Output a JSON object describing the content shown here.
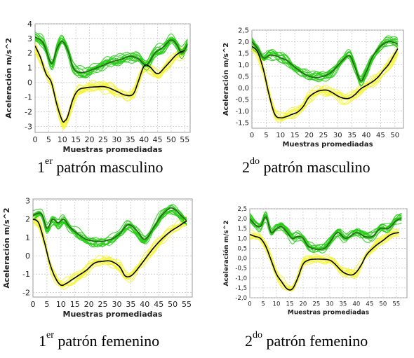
{
  "captions": [
    {
      "pre": "1",
      "sup": "er",
      "post": " patrón masculino"
    },
    {
      "pre": "2",
      "sup": "do",
      "post": " patrón masculino"
    },
    {
      "pre": "1",
      "sup": "er",
      "post": " patrón femenino"
    },
    {
      "pre": "2",
      "sup": "do",
      "post": " patrón femenino"
    }
  ],
  "colors": {
    "green": "#22cc11",
    "yellow": "#f4f43a",
    "mean": "#000000"
  },
  "chart_data": [
    {
      "type": "line",
      "xlabel": "Muestras promediadas",
      "ylabel": "Aceleración m/s^2",
      "xlim": [
        0,
        57
      ],
      "ylim": [
        -3.4,
        4
      ],
      "xticks": [
        "0",
        "5",
        "10",
        "15",
        "20",
        "25",
        "30",
        "35",
        "40",
        "45",
        "50",
        "55"
      ],
      "yticks": [
        "-3",
        "-2",
        "-1",
        "0",
        "1",
        "2",
        "3",
        "4"
      ],
      "series": [
        {
          "color": "green",
          "x": [
            0,
            3,
            6,
            8,
            10,
            12,
            14,
            16,
            18,
            20,
            24,
            28,
            32,
            35,
            38,
            41,
            44,
            47,
            50,
            52,
            54,
            56
          ],
          "y": [
            3.1,
            2.7,
            1.3,
            2.3,
            2.8,
            2.2,
            1.0,
            0.7,
            0.7,
            0.8,
            1.1,
            1.4,
            1.6,
            1.8,
            1.6,
            1.2,
            2.0,
            2.4,
            2.9,
            2.6,
            2.0,
            2.6
          ]
        },
        {
          "color": "yellow",
          "x": [
            0,
            2,
            4,
            6,
            8,
            10,
            11,
            12,
            14,
            16,
            19,
            22,
            26,
            30,
            33,
            36,
            38,
            40,
            42,
            45,
            48,
            52,
            55
          ],
          "y": [
            2.4,
            1.6,
            0.6,
            0.0,
            -1.5,
            -2.8,
            -2.8,
            -2.4,
            -1.2,
            -0.6,
            -0.4,
            -0.3,
            -0.3,
            -0.6,
            -0.9,
            -0.8,
            0.1,
            1.0,
            1.0,
            0.5,
            1.0,
            1.8,
            2.1
          ]
        },
        {
          "color": "mean",
          "x": [
            0,
            2,
            4,
            6,
            8,
            10,
            11,
            12,
            14,
            16,
            19,
            22,
            26,
            30,
            33,
            36,
            38,
            40,
            42,
            45,
            48,
            52,
            55
          ],
          "y": [
            2.5,
            1.7,
            0.6,
            0.0,
            -1.5,
            -2.6,
            -2.6,
            -2.3,
            -1.1,
            -0.5,
            -0.35,
            -0.3,
            -0.3,
            -0.6,
            -0.85,
            -0.8,
            0.1,
            1.1,
            1.1,
            0.6,
            1.1,
            1.9,
            2.2
          ]
        }
      ]
    },
    {
      "type": "line",
      "xlabel": "Muestras promediadas",
      "ylabel": "Aceleración m/s^2",
      "xlim": [
        0,
        53
      ],
      "ylim": [
        -1.75,
        2.5
      ],
      "xticks": [
        "0",
        "5",
        "10",
        "15",
        "20",
        "25",
        "30",
        "35",
        "40",
        "45",
        "50"
      ],
      "yticks": [
        "-1,5",
        "-1,0",
        "-0,5",
        "0,0",
        "0,5",
        "1,0",
        "1,5",
        "2,0",
        "2,5"
      ],
      "series": [
        {
          "color": "green",
          "x": [
            0,
            2,
            4,
            6,
            8,
            10,
            12,
            14,
            16,
            19,
            22,
            25,
            28,
            31,
            34,
            36,
            38,
            40,
            42,
            45,
            48,
            51
          ],
          "y": [
            2.0,
            1.7,
            1.3,
            1.4,
            1.4,
            1.3,
            1.2,
            1.0,
            0.8,
            0.55,
            0.45,
            0.5,
            0.7,
            1.1,
            1.4,
            0.9,
            0.3,
            0.7,
            1.3,
            1.8,
            2.0,
            1.9
          ]
        },
        {
          "color": "yellow",
          "x": [
            0,
            2,
            4,
            6,
            8,
            10,
            12,
            14,
            16,
            18,
            20,
            23,
            26,
            28,
            30,
            32,
            34,
            36,
            38,
            40,
            42,
            44,
            46,
            48,
            51
          ],
          "y": [
            1.7,
            1.5,
            0.8,
            -0.3,
            -1.1,
            -1.25,
            -1.2,
            -1.1,
            -1.0,
            -0.8,
            -0.4,
            -0.15,
            -0.1,
            -0.2,
            -0.35,
            -0.45,
            -0.45,
            -0.3,
            -0.05,
            0.1,
            0.25,
            0.45,
            0.7,
            1.0,
            1.6
          ]
        },
        {
          "color": "mean",
          "x": [
            0,
            2,
            4,
            6,
            8,
            10,
            12,
            14,
            16,
            18,
            20,
            23,
            26,
            28,
            30,
            32,
            34,
            36,
            38,
            40,
            42,
            44,
            46,
            48,
            51
          ],
          "y": [
            1.8,
            1.55,
            0.8,
            -0.3,
            -1.15,
            -1.3,
            -1.25,
            -1.15,
            -1.05,
            -0.8,
            -0.4,
            -0.15,
            -0.1,
            -0.2,
            -0.35,
            -0.45,
            -0.45,
            -0.3,
            -0.05,
            0.1,
            0.25,
            0.45,
            0.75,
            1.05,
            1.7
          ]
        }
      ]
    },
    {
      "type": "line",
      "xlabel": "Muestras promediadas",
      "ylabel": "Aceleración m/s^2",
      "xlim": [
        0,
        57
      ],
      "ylim": [
        -2.25,
        3.1
      ],
      "xticks": [
        "0",
        "5",
        "10",
        "15",
        "20",
        "25",
        "30",
        "35",
        "40",
        "45",
        "50",
        "55"
      ],
      "yticks": [
        "-2",
        "-1",
        "0",
        "1",
        "2",
        "3"
      ],
      "series": [
        {
          "color": "green",
          "x": [
            0,
            3,
            5,
            7,
            9,
            11,
            13,
            16,
            19,
            22,
            25,
            28,
            31,
            34,
            37,
            40,
            43,
            46,
            49,
            51,
            53,
            55
          ],
          "y": [
            2.2,
            2.3,
            1.5,
            2.0,
            1.8,
            2.0,
            1.6,
            1.2,
            0.9,
            0.8,
            0.8,
            0.9,
            1.2,
            1.7,
            1.4,
            0.9,
            1.5,
            2.2,
            2.6,
            2.5,
            2.2,
            1.9
          ]
        },
        {
          "color": "yellow",
          "x": [
            0,
            2,
            4,
            6,
            8,
            10,
            12,
            14,
            16,
            19,
            22,
            25,
            28,
            31,
            33,
            35,
            37,
            40,
            43,
            46,
            49,
            52,
            55
          ],
          "y": [
            2.0,
            1.8,
            0.8,
            -0.4,
            -1.2,
            -1.6,
            -1.5,
            -1.3,
            -1.1,
            -0.8,
            -0.4,
            -0.3,
            -0.3,
            -0.6,
            -1.1,
            -1.1,
            -0.8,
            -0.2,
            0.4,
            0.9,
            1.3,
            1.6,
            1.9
          ]
        },
        {
          "color": "mean",
          "x": [
            0,
            2,
            4,
            6,
            8,
            10,
            12,
            14,
            16,
            19,
            22,
            25,
            28,
            31,
            33,
            35,
            37,
            40,
            43,
            46,
            49,
            52,
            55
          ],
          "y": [
            2.0,
            1.8,
            0.8,
            -0.4,
            -1.2,
            -1.6,
            -1.5,
            -1.3,
            -1.1,
            -0.8,
            -0.4,
            -0.3,
            -0.3,
            -0.6,
            -1.1,
            -1.1,
            -0.8,
            -0.2,
            0.4,
            0.9,
            1.3,
            1.6,
            1.9
          ]
        }
      ]
    },
    {
      "type": "line",
      "xlabel": "Muestras promediadas",
      "ylabel": "Aceleración m/s^2",
      "xlim": [
        0,
        59
      ],
      "ylim": [
        -2.0,
        2.5
      ],
      "xticks": [
        "0",
        "5",
        "10",
        "15",
        "20",
        "25",
        "30",
        "35",
        "40",
        "45",
        "50",
        "55"
      ],
      "yticks": [
        "-2,0",
        "-1,5",
        "-1,0",
        "-0,5",
        "0,0",
        "0,5",
        "1,0",
        "1,5",
        "2,0",
        "2,5"
      ],
      "series": [
        {
          "color": "green",
          "x": [
            0,
            2,
            4,
            6,
            8,
            10,
            12,
            14,
            16,
            18,
            20,
            22,
            25,
            28,
            30,
            33,
            36,
            40,
            43,
            46,
            49,
            52,
            55,
            57
          ],
          "y": [
            2.0,
            1.7,
            1.6,
            2.1,
            1.3,
            1.5,
            1.6,
            1.3,
            1.0,
            1.1,
            1.0,
            0.6,
            0.45,
            0.5,
            0.8,
            1.3,
            1.0,
            1.3,
            1.1,
            1.1,
            1.5,
            1.5,
            1.9,
            2.0
          ]
        },
        {
          "color": "yellow",
          "x": [
            0,
            2,
            4,
            6,
            8,
            10,
            12,
            14,
            16,
            18,
            20,
            22,
            24,
            27,
            30,
            32,
            35,
            38,
            40,
            42,
            44,
            47,
            50,
            53,
            56
          ],
          "y": [
            1.2,
            1.1,
            1.0,
            0.6,
            -0.1,
            -0.8,
            -1.2,
            -1.5,
            -1.5,
            -1.0,
            -0.3,
            -0.1,
            -0.05,
            -0.05,
            -0.1,
            -0.3,
            -0.7,
            -0.8,
            -0.7,
            -0.3,
            0.2,
            0.6,
            0.9,
            1.2,
            1.3
          ]
        },
        {
          "color": "mean",
          "x": [
            0,
            2,
            4,
            6,
            8,
            10,
            12,
            14,
            16,
            18,
            20,
            22,
            24,
            27,
            30,
            32,
            35,
            38,
            40,
            42,
            44,
            47,
            50,
            53,
            56
          ],
          "y": [
            1.2,
            1.1,
            1.0,
            0.6,
            -0.1,
            -0.8,
            -1.2,
            -1.55,
            -1.55,
            -1.0,
            -0.3,
            -0.1,
            -0.05,
            -0.05,
            -0.1,
            -0.3,
            -0.7,
            -0.85,
            -0.7,
            -0.3,
            0.2,
            0.6,
            0.9,
            1.2,
            1.3
          ]
        }
      ]
    }
  ]
}
